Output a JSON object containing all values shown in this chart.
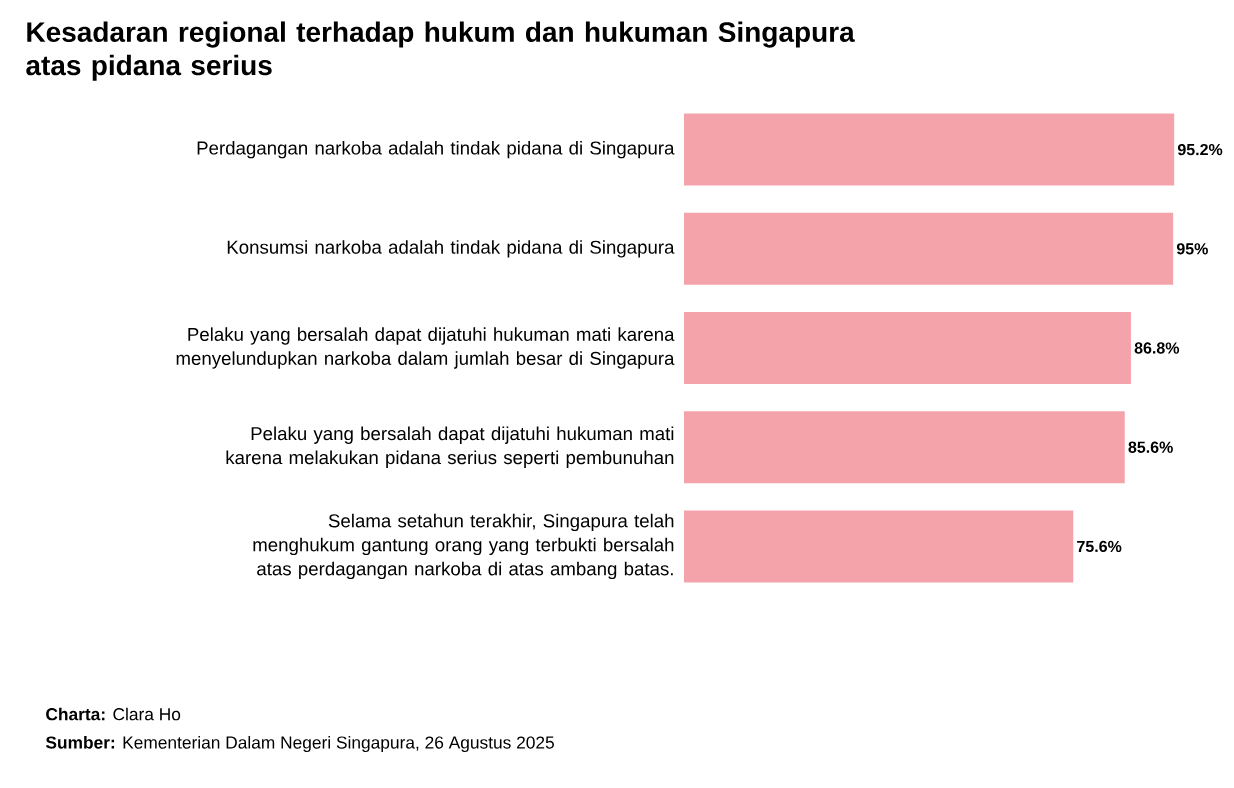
{
  "chart_data": {
    "type": "bar",
    "orientation": "horizontal",
    "title": "Kesadaran regional terhadap hukum dan hukuman Singapura atas pidana serius",
    "categories": [
      "Perdagangan narkoba adalah tindak pidana di Singapura",
      "Konsumsi narkoba adalah tindak pidana di Singapura",
      "Pelaku yang bersalah dapat dijatuhi hukuman mati karena menyelundupkan narkoba dalam jumlah besar di Singapura",
      "Pelaku yang bersalah dapat dijatuhi hukuman mati karena melakukan pidana serius seperti pembunuhan",
      "Selama setahun terakhir, Singapura telah menghukum gantung orang yang terbukti bersalah atas perdagangan narkoba di atas ambang batas."
    ],
    "values": [
      95.2,
      95,
      86.8,
      85.6,
      75.6
    ],
    "value_labels": [
      "95.2%",
      "95%",
      "86.8%",
      "85.6%",
      "75.6%"
    ],
    "color": "#f5a3aa",
    "annotations": [
      "**Charta:** Clara Ho",
      "**Sumber:** Kementerian Dalam Negeri Singapura, 26 Agustus 2025"
    ]
  }
}
